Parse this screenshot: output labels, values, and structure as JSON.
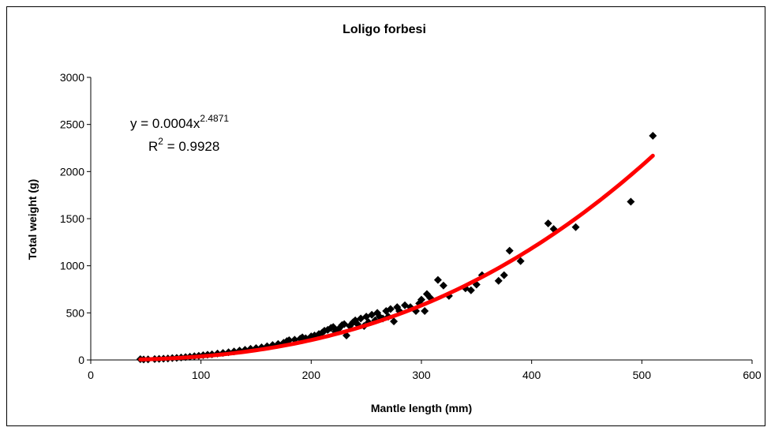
{
  "chart_data": {
    "type": "scatter",
    "title": "Loligo forbesi",
    "xlabel": "Mantle length (mm)",
    "ylabel": "Total weight (g)",
    "xlim": [
      0,
      600
    ],
    "ylim": [
      0,
      3000
    ],
    "xticks": [
      0,
      100,
      200,
      300,
      400,
      500,
      600
    ],
    "yticks": [
      0,
      500,
      1000,
      1500,
      2000,
      2500,
      3000
    ],
    "grid": false,
    "colors": {
      "points": "#000000",
      "trendline": "#ff0000"
    },
    "trendline": {
      "type": "power",
      "a": 0.0004,
      "b": 2.4871,
      "equation_prefix": "y = 0.0004x",
      "equation_exponent": "2.4871",
      "r2_prefix": "R",
      "r2_exponent": "2",
      "r2_suffix": " = 0.9928"
    },
    "points": [
      [
        45,
        8
      ],
      [
        48,
        5
      ],
      [
        52,
        6
      ],
      [
        58,
        9
      ],
      [
        62,
        12
      ],
      [
        66,
        14
      ],
      [
        70,
        16
      ],
      [
        74,
        20
      ],
      [
        78,
        22
      ],
      [
        82,
        26
      ],
      [
        86,
        30
      ],
      [
        90,
        35
      ],
      [
        94,
        40
      ],
      [
        98,
        44
      ],
      [
        102,
        50
      ],
      [
        106,
        56
      ],
      [
        110,
        60
      ],
      [
        115,
        68
      ],
      [
        120,
        74
      ],
      [
        125,
        82
      ],
      [
        130,
        90
      ],
      [
        135,
        100
      ],
      [
        140,
        108
      ],
      [
        145,
        118
      ],
      [
        150,
        126
      ],
      [
        155,
        134
      ],
      [
        160,
        146
      ],
      [
        165,
        158
      ],
      [
        170,
        170
      ],
      [
        175,
        182
      ],
      [
        178,
        200
      ],
      [
        180,
        210
      ],
      [
        185,
        215
      ],
      [
        190,
        225
      ],
      [
        192,
        240
      ],
      [
        195,
        230
      ],
      [
        200,
        250
      ],
      [
        203,
        260
      ],
      [
        207,
        275
      ],
      [
        210,
        290
      ],
      [
        212,
        310
      ],
      [
        215,
        320
      ],
      [
        218,
        340
      ],
      [
        220,
        350
      ],
      [
        222,
        300
      ],
      [
        225,
        330
      ],
      [
        228,
        370
      ],
      [
        230,
        380
      ],
      [
        232,
        260
      ],
      [
        235,
        360
      ],
      [
        238,
        400
      ],
      [
        240,
        420
      ],
      [
        242,
        380
      ],
      [
        245,
        440
      ],
      [
        248,
        360
      ],
      [
        250,
        460
      ],
      [
        252,
        400
      ],
      [
        255,
        480
      ],
      [
        258,
        420
      ],
      [
        260,
        500
      ],
      [
        262,
        460
      ],
      [
        265,
        440
      ],
      [
        268,
        520
      ],
      [
        270,
        460
      ],
      [
        272,
        540
      ],
      [
        275,
        410
      ],
      [
        278,
        560
      ],
      [
        280,
        520
      ],
      [
        285,
        580
      ],
      [
        290,
        560
      ],
      [
        295,
        520
      ],
      [
        298,
        600
      ],
      [
        300,
        640
      ],
      [
        303,
        520
      ],
      [
        305,
        700
      ],
      [
        308,
        660
      ],
      [
        315,
        850
      ],
      [
        320,
        790
      ],
      [
        325,
        680
      ],
      [
        340,
        760
      ],
      [
        345,
        740
      ],
      [
        350,
        800
      ],
      [
        355,
        900
      ],
      [
        370,
        840
      ],
      [
        375,
        900
      ],
      [
        380,
        1160
      ],
      [
        390,
        1050
      ],
      [
        415,
        1450
      ],
      [
        420,
        1390
      ],
      [
        440,
        1410
      ],
      [
        490,
        1680
      ],
      [
        510,
        2380
      ]
    ]
  }
}
